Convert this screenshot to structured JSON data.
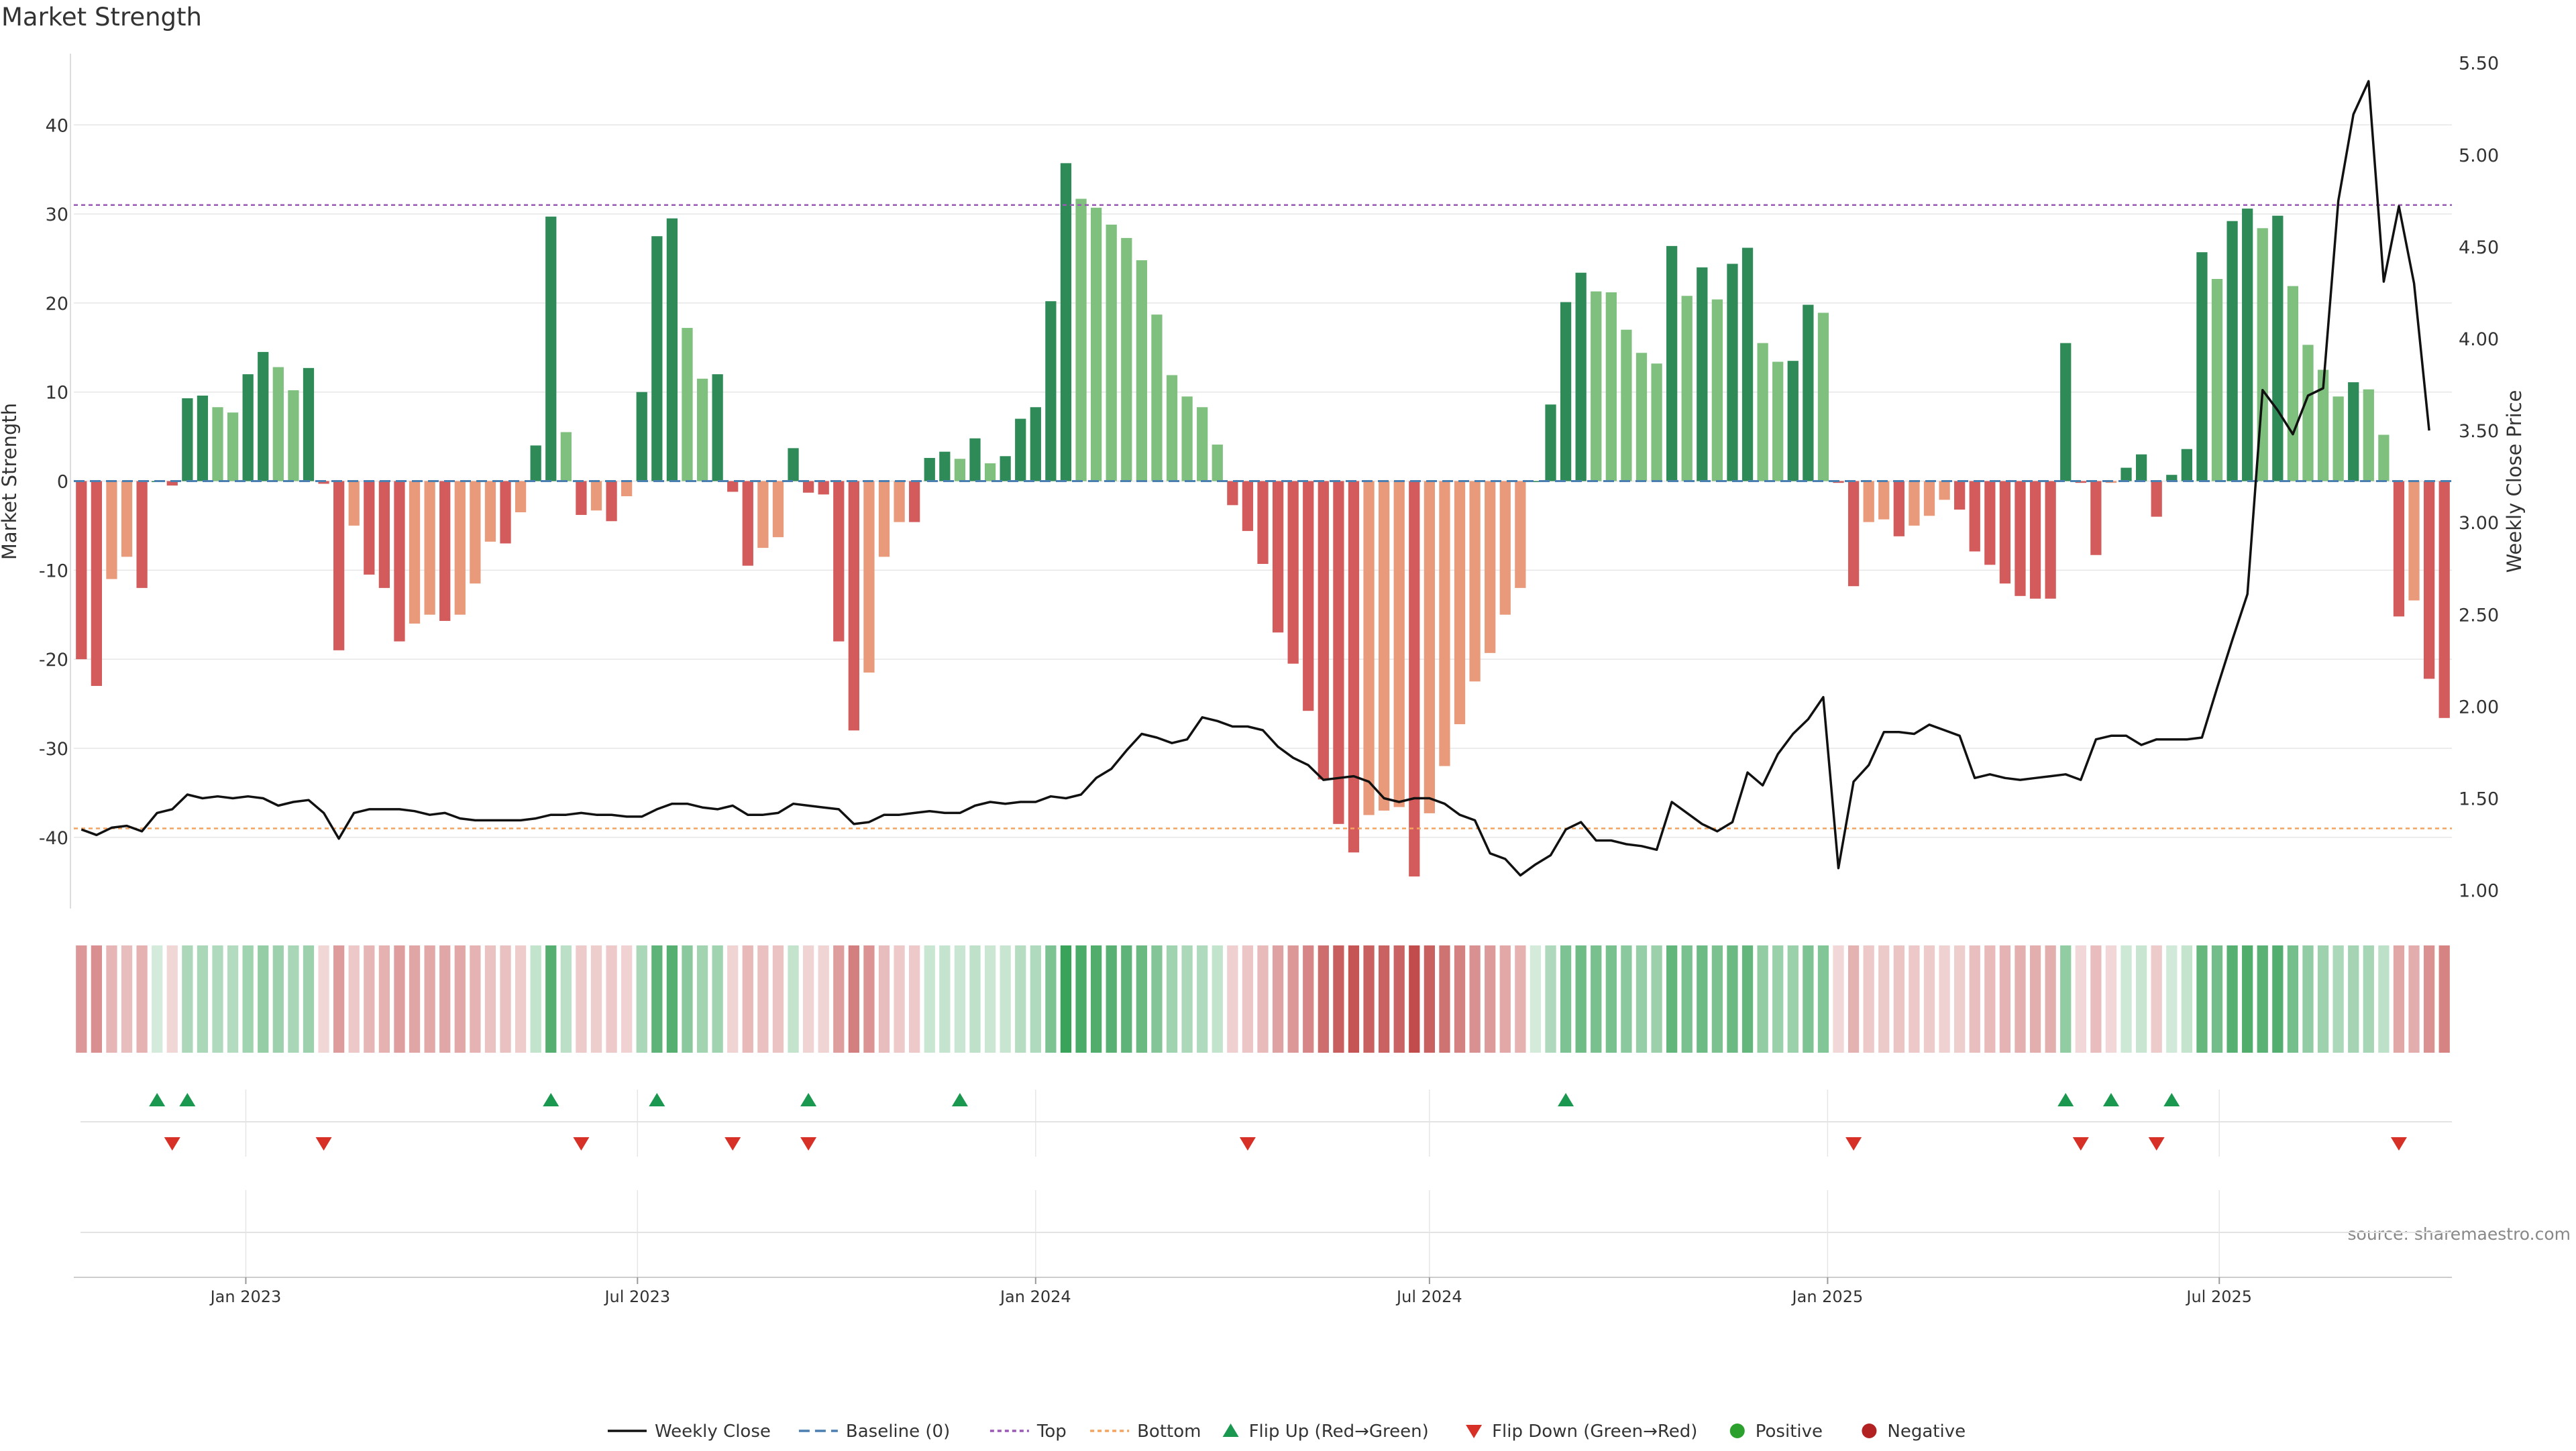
{
  "chart_data": {
    "type": "bar",
    "title": "Market Strength",
    "ylabel": "Market Strength",
    "y2label": "Weekly Close Price",
    "source": "source: sharemaestro.com",
    "ylim": [
      -48,
      48
    ],
    "y2lim": [
      0.9,
      5.55
    ],
    "start_date": "2022-10-17",
    "week_interval_days": 7,
    "x_ticks": [
      {
        "label": "Jan 2023",
        "date": "2023-01-01"
      },
      {
        "label": "Jul 2023",
        "date": "2023-07-01"
      },
      {
        "label": "Jan 2024",
        "date": "2024-01-01"
      },
      {
        "label": "Jul 2024",
        "date": "2024-07-01"
      },
      {
        "label": "Jan 2025",
        "date": "2025-01-01"
      },
      {
        "label": "Jul 2025",
        "date": "2025-07-01"
      }
    ],
    "y_ticks": [
      -40,
      -30,
      -20,
      -10,
      0,
      10,
      20,
      30,
      40
    ],
    "y2_ticks": [
      "1.00",
      "1.50",
      "2.00",
      "2.50",
      "3.00",
      "3.50",
      "4.00",
      "4.50",
      "5.00",
      "5.50"
    ],
    "reference_lines": {
      "top": 31,
      "bottom": -39,
      "baseline": 0
    },
    "strength": [
      -20,
      -23,
      -11,
      -8.5,
      -12,
      0,
      -0.5,
      9.3,
      9.6,
      8.3,
      7.7,
      12,
      14.5,
      12.8,
      10.2,
      12.7,
      -0.3,
      -19,
      -5,
      -10.5,
      -12,
      -18,
      -16,
      -15,
      -15.7,
      -15,
      -11.5,
      -6.8,
      -7,
      -3.5,
      4,
      29.7,
      5.5,
      -3.8,
      -3.3,
      -4.5,
      -1.7,
      10,
      27.5,
      29.5,
      17.2,
      11.5,
      12,
      -1.2,
      -9.5,
      -7.5,
      -6.3,
      3.7,
      -1.3,
      -1.5,
      -18,
      -28,
      -21.5,
      -8.5,
      -4.6,
      -4.6,
      2.6,
      3.3,
      2.5,
      4.8,
      2,
      2.8,
      7,
      8.3,
      20.2,
      35.7,
      31.7,
      30.7,
      28.8,
      27.3,
      24.8,
      18.7,
      11.9,
      9.5,
      8.3,
      4.1,
      -2.7,
      -5.6,
      -9.3,
      -17,
      -20.5,
      -25.8,
      -33.5,
      -38.5,
      -41.7,
      -37.5,
      -37,
      -36.6,
      -44.4,
      -37.3,
      -32,
      -27.3,
      -22.5,
      -19.3,
      -15,
      -12,
      0,
      8.6,
      20.1,
      23.4,
      21.3,
      21.2,
      17,
      14.4,
      13.2,
      26.4,
      20.8,
      24,
      20.4,
      24.4,
      26.2,
      15.5,
      13.4,
      13.5,
      19.8,
      18.9,
      -0.2,
      -11.8,
      -4.6,
      -4.3,
      -6.2,
      -5,
      -3.9,
      -2.1,
      -3.2,
      -7.9,
      -9.4,
      -11.5,
      -12.9,
      -13.2,
      -13.2,
      15.5,
      -0.2,
      -8.3,
      -0.2,
      1.5,
      3,
      -4,
      0.7,
      3.6,
      25.7,
      22.7,
      29.2,
      30.6,
      28.4,
      29.8,
      21.9,
      15.3,
      12.5,
      9.5,
      11.1,
      10.3,
      5.2,
      -15.2,
      -13.4,
      -22.2,
      -26.6
    ],
    "close": [
      1.33,
      1.3,
      1.34,
      1.35,
      1.32,
      1.42,
      1.44,
      1.52,
      1.5,
      1.51,
      1.5,
      1.51,
      1.5,
      1.46,
      1.48,
      1.49,
      1.42,
      1.28,
      1.42,
      1.44,
      1.44,
      1.44,
      1.43,
      1.41,
      1.42,
      1.39,
      1.38,
      1.38,
      1.38,
      1.38,
      1.39,
      1.41,
      1.41,
      1.42,
      1.41,
      1.41,
      1.4,
      1.4,
      1.44,
      1.47,
      1.47,
      1.45,
      1.44,
      1.46,
      1.41,
      1.41,
      1.42,
      1.47,
      1.46,
      1.45,
      1.44,
      1.36,
      1.37,
      1.41,
      1.41,
      1.42,
      1.43,
      1.42,
      1.42,
      1.46,
      1.48,
      1.47,
      1.48,
      1.48,
      1.51,
      1.5,
      1.52,
      1.61,
      1.66,
      1.76,
      1.85,
      1.83,
      1.8,
      1.82,
      1.94,
      1.92,
      1.89,
      1.89,
      1.87,
      1.78,
      1.72,
      1.68,
      1.6,
      1.61,
      1.62,
      1.59,
      1.5,
      1.48,
      1.5,
      1.5,
      1.47,
      1.41,
      1.38,
      1.2,
      1.17,
      1.08,
      1.14,
      1.19,
      1.33,
      1.37,
      1.27,
      1.27,
      1.25,
      1.24,
      1.22,
      1.48,
      1.42,
      1.36,
      1.32,
      1.37,
      1.64,
      1.57,
      1.74,
      1.85,
      1.93,
      2.05,
      1.12,
      1.59,
      1.68,
      1.86,
      1.86,
      1.85,
      1.9,
      1.87,
      1.84,
      1.61,
      1.63,
      1.61,
      1.6,
      1.61,
      1.62,
      1.63,
      1.6,
      1.82,
      1.84,
      1.84,
      1.79,
      1.82,
      1.82,
      1.82,
      1.83,
      2.1,
      2.36,
      2.61,
      3.72,
      3.61,
      3.48,
      3.69,
      3.73,
      4.75,
      5.22,
      5.4,
      4.31,
      4.72,
      4.3,
      3.5
    ],
    "flip_up_weeks": [
      5,
      7,
      31,
      38,
      48,
      58,
      98,
      131,
      134,
      138
    ],
    "flip_down_weeks": [
      6,
      16,
      33,
      43,
      48,
      77,
      117,
      132,
      137,
      153
    ],
    "legend": [
      "Weekly Close",
      "Baseline (0)",
      "Top",
      "Bottom",
      "Flip Up (Red→Green)",
      "Flip Down (Green→Red)",
      "Positive",
      "Negative"
    ],
    "legend_placement": "bottom",
    "colors": {
      "pos_strong": "#2e8b57",
      "pos_light": "#7fc07f",
      "neg_strong": "#d35b5b",
      "neg_light": "#e89a7a",
      "close_line": "#111111",
      "top_line": "#9b59b6",
      "bottom_line": "#f4a460",
      "baseline": "#4a7fb0",
      "flip_up": "#1a9850",
      "flip_down": "#d73027",
      "positive_dot": "#2ca02c",
      "negative_dot": "#b22222"
    }
  }
}
